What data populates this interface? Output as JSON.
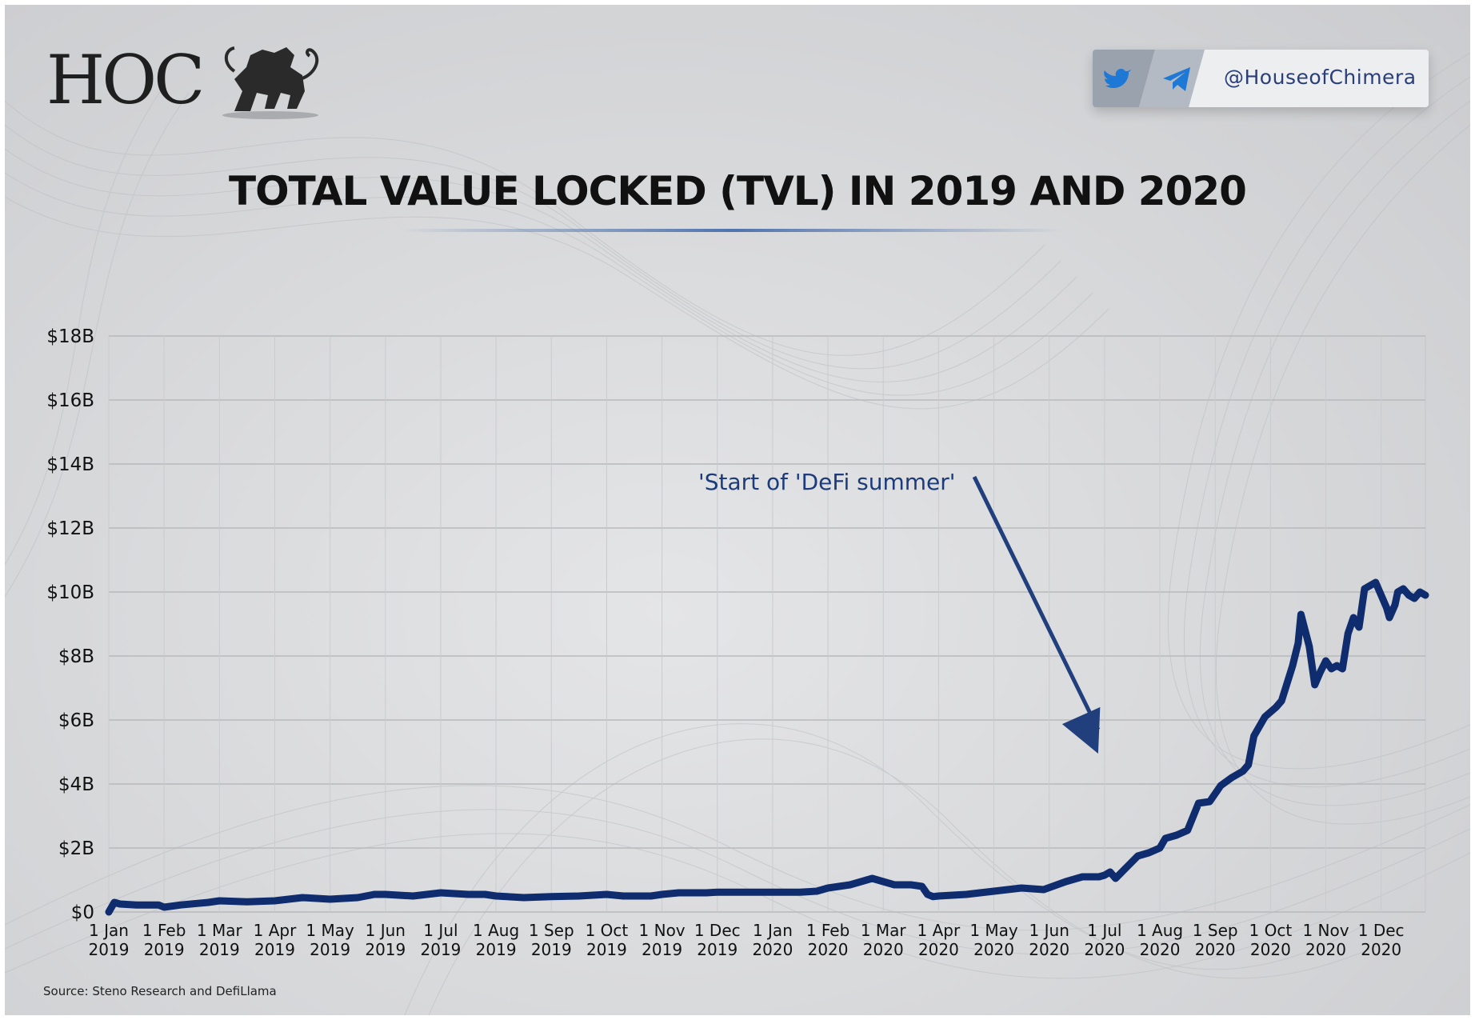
{
  "brand": {
    "logo_text": "HOC",
    "handle": "@HouseofChimera",
    "social_icons": [
      "twitter-icon",
      "telegram-icon"
    ],
    "colors": {
      "navy": "#0f2c6e",
      "accent_blue": "#1f77d6",
      "dark_panel": "#9ea6b2"
    }
  },
  "chart_data": {
    "type": "line",
    "title": "TOTAL VALUE LOCKED (TVL) IN 2019 AND 2020",
    "xlabel": "",
    "ylabel": "",
    "ylim": [
      0,
      18
    ],
    "y_unit": "billion USD",
    "y_ticks": [
      "$0",
      "$2B",
      "$4B",
      "$6B",
      "$8B",
      "$10B",
      "$12B",
      "$14B",
      "$16B",
      "$18B"
    ],
    "x_ticks": [
      {
        "line1": "1 Jan",
        "line2": "2019"
      },
      {
        "line1": "1 Feb",
        "line2": "2019"
      },
      {
        "line1": "1 Mar",
        "line2": "2019"
      },
      {
        "line1": "1 Apr",
        "line2": "2019"
      },
      {
        "line1": "1 May",
        "line2": "2019"
      },
      {
        "line1": "1 Jun",
        "line2": "2019"
      },
      {
        "line1": "1 Jul",
        "line2": "2019"
      },
      {
        "line1": "1 Aug",
        "line2": "2019"
      },
      {
        "line1": "1 Sep",
        "line2": "2019"
      },
      {
        "line1": "1 Oct",
        "line2": "2019"
      },
      {
        "line1": "1 Nov",
        "line2": "2019"
      },
      {
        "line1": "1 Dec",
        "line2": "2019"
      },
      {
        "line1": "1 Jan",
        "line2": "2020"
      },
      {
        "line1": "1 Feb",
        "line2": "2020"
      },
      {
        "line1": "1 Mar",
        "line2": "2020"
      },
      {
        "line1": "1 Apr",
        "line2": "2020"
      },
      {
        "line1": "1 May",
        "line2": "2020"
      },
      {
        "line1": "1 Jun",
        "line2": "2020"
      },
      {
        "line1": "1 Jul",
        "line2": "2020"
      },
      {
        "line1": "1 Aug",
        "line2": "2020"
      },
      {
        "line1": "1 Sep",
        "line2": "2020"
      },
      {
        "line1": "1 Oct",
        "line2": "2020"
      },
      {
        "line1": "1 Nov",
        "line2": "2020"
      },
      {
        "line1": "1 Dec",
        "line2": "2020"
      }
    ],
    "x_range_months": [
      0,
      23.8
    ],
    "series": [
      {
        "name": "TVL",
        "color": "#0f2c6e",
        "points": [
          [
            0.0,
            0.0
          ],
          [
            0.1,
            0.3
          ],
          [
            0.2,
            0.25
          ],
          [
            0.5,
            0.22
          ],
          [
            0.9,
            0.22
          ],
          [
            1.0,
            0.15
          ],
          [
            1.3,
            0.22
          ],
          [
            1.8,
            0.3
          ],
          [
            2.0,
            0.35
          ],
          [
            2.5,
            0.32
          ],
          [
            3.0,
            0.35
          ],
          [
            3.5,
            0.45
          ],
          [
            4.0,
            0.4
          ],
          [
            4.5,
            0.45
          ],
          [
            4.8,
            0.55
          ],
          [
            5.0,
            0.55
          ],
          [
            5.5,
            0.5
          ],
          [
            6.0,
            0.6
          ],
          [
            6.5,
            0.55
          ],
          [
            6.8,
            0.55
          ],
          [
            7.0,
            0.5
          ],
          [
            7.5,
            0.45
          ],
          [
            8.0,
            0.48
          ],
          [
            8.5,
            0.5
          ],
          [
            9.0,
            0.55
          ],
          [
            9.3,
            0.5
          ],
          [
            9.8,
            0.5
          ],
          [
            10.0,
            0.55
          ],
          [
            10.3,
            0.6
          ],
          [
            10.8,
            0.6
          ],
          [
            11.0,
            0.62
          ],
          [
            11.5,
            0.62
          ],
          [
            12.0,
            0.62
          ],
          [
            12.5,
            0.62
          ],
          [
            12.8,
            0.65
          ],
          [
            13.0,
            0.75
          ],
          [
            13.4,
            0.85
          ],
          [
            13.6,
            0.95
          ],
          [
            13.8,
            1.05
          ],
          [
            14.0,
            0.95
          ],
          [
            14.2,
            0.85
          ],
          [
            14.5,
            0.85
          ],
          [
            14.7,
            0.8
          ],
          [
            14.8,
            0.55
          ],
          [
            14.9,
            0.48
          ],
          [
            15.0,
            0.5
          ],
          [
            15.5,
            0.55
          ],
          [
            16.0,
            0.65
          ],
          [
            16.5,
            0.75
          ],
          [
            16.9,
            0.7
          ],
          [
            17.3,
            0.95
          ],
          [
            17.6,
            1.1
          ],
          [
            17.9,
            1.1
          ],
          [
            18.0,
            1.15
          ],
          [
            18.1,
            1.25
          ],
          [
            18.2,
            1.05
          ],
          [
            18.4,
            1.4
          ],
          [
            18.6,
            1.75
          ],
          [
            18.8,
            1.85
          ],
          [
            19.0,
            2.0
          ],
          [
            19.1,
            2.3
          ],
          [
            19.3,
            2.4
          ],
          [
            19.5,
            2.55
          ],
          [
            19.7,
            3.4
          ],
          [
            19.9,
            3.45
          ],
          [
            20.1,
            3.95
          ],
          [
            20.3,
            4.2
          ],
          [
            20.5,
            4.4
          ],
          [
            20.6,
            4.6
          ],
          [
            20.7,
            5.5
          ],
          [
            20.9,
            6.1
          ],
          [
            21.1,
            6.4
          ],
          [
            21.2,
            6.6
          ],
          [
            21.4,
            7.7
          ],
          [
            21.5,
            8.4
          ],
          [
            21.55,
            9.3
          ],
          [
            21.7,
            8.3
          ],
          [
            21.8,
            7.1
          ],
          [
            21.9,
            7.5
          ],
          [
            22.0,
            7.85
          ],
          [
            22.1,
            7.6
          ],
          [
            22.2,
            7.7
          ],
          [
            22.3,
            7.6
          ],
          [
            22.4,
            8.7
          ],
          [
            22.5,
            9.2
          ],
          [
            22.6,
            8.9
          ],
          [
            22.7,
            10.1
          ],
          [
            22.8,
            10.2
          ],
          [
            22.9,
            10.3
          ],
          [
            23.0,
            9.9
          ],
          [
            23.1,
            9.5
          ],
          [
            23.15,
            9.2
          ],
          [
            23.25,
            9.6
          ],
          [
            23.3,
            10.0
          ],
          [
            23.4,
            10.1
          ],
          [
            23.5,
            9.9
          ],
          [
            23.6,
            9.8
          ],
          [
            23.7,
            10.0
          ],
          [
            23.8,
            9.9
          ]
        ]
      }
    ],
    "annotation": {
      "text": "'Start of 'DeFi summer'",
      "target": [
        18.0,
        5.0
      ]
    }
  },
  "source": "Source: Steno Research and DefiLlama"
}
